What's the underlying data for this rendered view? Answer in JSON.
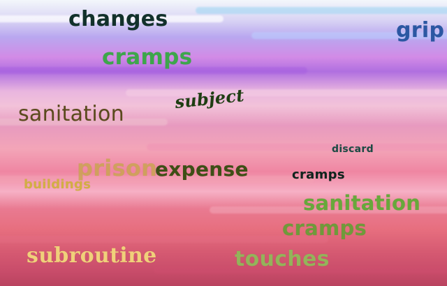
{
  "words": {
    "changes": {
      "text": "changes",
      "color": "#12312b"
    },
    "grip": {
      "text": "grip",
      "color": "#2b57a3"
    },
    "cramps_top": {
      "text": "cramps",
      "color": "#3da64b"
    },
    "subject": {
      "text": "subject",
      "color": "#1e3e12"
    },
    "sanitation_left": {
      "text": "sanitation",
      "color": "#5b4a1d"
    },
    "discard": {
      "text": "discard",
      "color": "#1c4b44"
    },
    "prison": {
      "text": "prison",
      "color": "#c8a64a"
    },
    "expense": {
      "text": "expense",
      "color": "#3e4f16"
    },
    "buildings": {
      "text": "buildings",
      "color": "#d0b03a"
    },
    "cramps_mid": {
      "text": "cramps",
      "color": "#0f241d"
    },
    "sanitation_right": {
      "text": "sanitation",
      "color": "#67a83b"
    },
    "cramps_low": {
      "text": "cramps",
      "color": "#6f9a3a"
    },
    "subroutine": {
      "text": "subroutine",
      "color": "#f0d07a"
    },
    "touches": {
      "text": "touches",
      "color": "#94b35a"
    }
  }
}
